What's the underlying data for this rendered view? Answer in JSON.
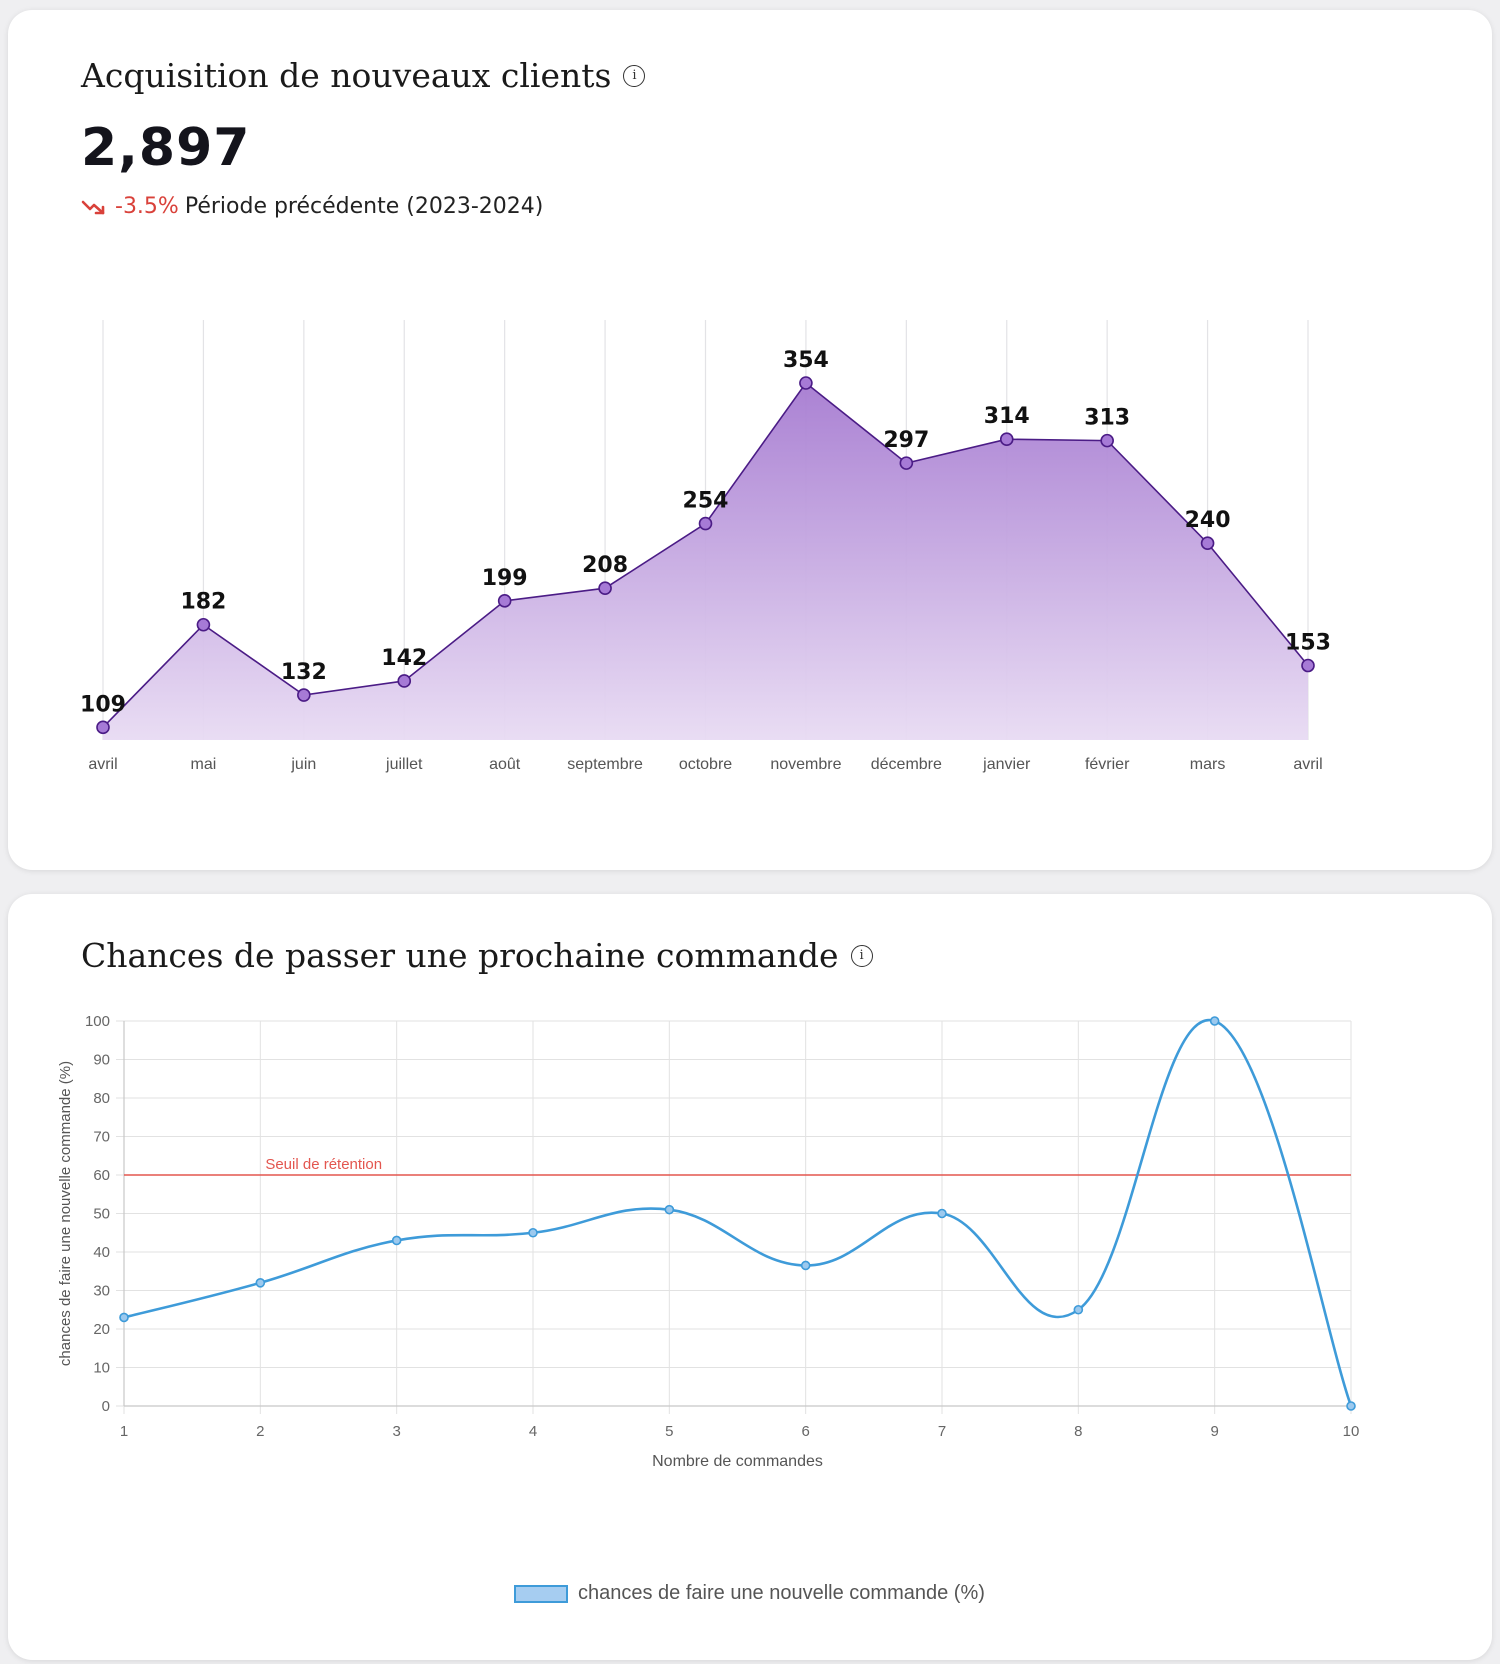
{
  "acquisition": {
    "title": "Acquisition de nouveaux clients",
    "info_icon": "info-icon",
    "total": "2,897",
    "trend_icon": "trending-down-icon",
    "change": "-3.5%",
    "comparison": "Période précédente (2023-2024)"
  },
  "retention": {
    "title": "Chances de passer une prochaine commande",
    "info_icon": "info-icon",
    "legend_label": "chances de faire une nouvelle commande (%)"
  },
  "colors": {
    "purple_line": "#4b1c86",
    "purple_point": "#a67ad6",
    "purple_fill_top": "#a67bd1",
    "purple_fill_bottom": "#e8dbf3",
    "blue_line": "#3e9bd9",
    "threshold_red": "#e3564f",
    "change_red": "#d9413a"
  },
  "chart_data": [
    {
      "type": "area",
      "title": "Acquisition de nouveaux clients",
      "categories": [
        "avril",
        "mai",
        "juin",
        "juillet",
        "août",
        "septembre",
        "octobre",
        "novembre",
        "décembre",
        "janvier",
        "février",
        "mars",
        "avril"
      ],
      "values": [
        109,
        182,
        132,
        142,
        199,
        208,
        254,
        354,
        297,
        314,
        313,
        240,
        153
      ],
      "data_labels": [
        "109",
        "182",
        "132",
        "142",
        "199",
        "208",
        "254",
        "354",
        "297",
        "314",
        "313",
        "240",
        "153"
      ],
      "ylim": [
        100,
        354
      ],
      "grid": "vertical"
    },
    {
      "type": "line",
      "title": "Chances de passer une prochaine commande",
      "x": [
        1,
        2,
        3,
        4,
        5,
        6,
        7,
        8,
        9,
        10
      ],
      "x_tick_labels": [
        "1",
        "2",
        "3",
        "4",
        "5",
        "6",
        "7",
        "8",
        "9",
        "10"
      ],
      "values": [
        23,
        32,
        43,
        45,
        51,
        36.5,
        50,
        25,
        100,
        0
      ],
      "xlabel": "Nombre de commandes",
      "ylabel": "chances de faire une nouvelle commande (%)",
      "ylim": [
        0,
        100
      ],
      "y_ticks": [
        0,
        10,
        20,
        30,
        40,
        50,
        60,
        70,
        80,
        90,
        100
      ],
      "y_tick_labels": [
        "0",
        "10",
        "20",
        "30",
        "40",
        "50",
        "60",
        "70",
        "80",
        "90",
        "100"
      ],
      "threshold": {
        "value": 60,
        "label": "Seuil de rétention"
      },
      "legend": {
        "label": "chances de faire une nouvelle commande (%)",
        "position": "bottom"
      },
      "grid": true
    }
  ]
}
